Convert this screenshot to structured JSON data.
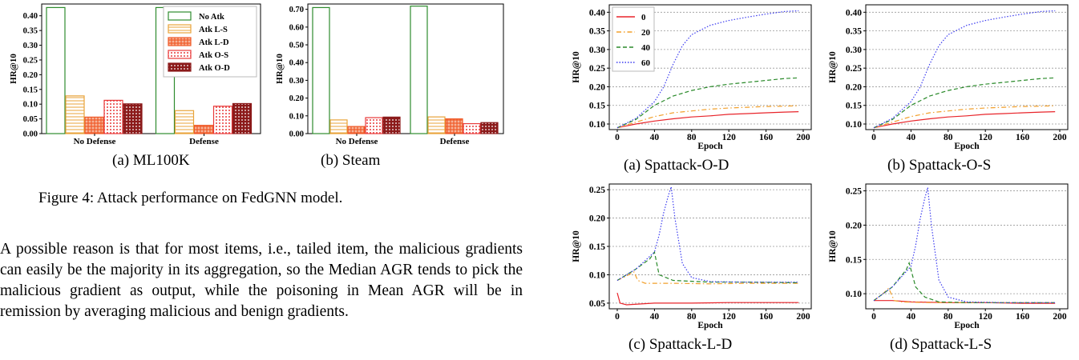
{
  "figure4": {
    "caption": "Figure 4: Attack performance on FedGNN model.",
    "legend": [
      "No Atk",
      "Atk L-S",
      "Atk L-D",
      "Atk O-S",
      "Atk O-D"
    ],
    "legend_colors": [
      "#2e8b2e",
      "#e8a33a",
      "#f05a28",
      "#e83a3a",
      "#8b1a1a"
    ]
  },
  "paragraph": "A possible reason is that for most items, i.e., tailed item, the malicious gradients can easily be the majority in its aggregation, so the Median AGR tends to pick the malicious gradient as output, while the poisoning in Mean AGR will be in remission by averaging malicious and benign gradients.",
  "chart_data": [
    {
      "type": "bar",
      "caption": "(a) ML100K",
      "ylabel": "HR@10",
      "categories": [
        "No Defense",
        "Defense"
      ],
      "ylim": [
        0,
        0.44
      ],
      "yticks": [
        "0.00",
        "0.05",
        "0.10",
        "0.15",
        "0.20",
        "0.25",
        "0.30",
        "0.35",
        "0.40"
      ],
      "series": [
        {
          "name": "No Atk",
          "values": [
            0.428,
            0.428
          ]
        },
        {
          "name": "Atk L-S",
          "values": [
            0.128,
            0.078
          ]
        },
        {
          "name": "Atk L-D",
          "values": [
            0.056,
            0.028
          ]
        },
        {
          "name": "Atk O-S",
          "values": [
            0.113,
            0.093
          ]
        },
        {
          "name": "Atk O-D",
          "values": [
            0.101,
            0.102
          ]
        }
      ]
    },
    {
      "type": "bar",
      "caption": "(b) Steam",
      "ylabel": "HR@10",
      "categories": [
        "No Defense",
        "Defense"
      ],
      "ylim": [
        0,
        0.73
      ],
      "yticks": [
        "0.00",
        "0.10",
        "0.20",
        "0.30",
        "0.40",
        "0.50",
        "0.60",
        "0.70"
      ],
      "series": [
        {
          "name": "No Atk",
          "values": [
            0.71,
            0.718
          ]
        },
        {
          "name": "Atk L-S",
          "values": [
            0.077,
            0.094
          ]
        },
        {
          "name": "Atk L-D",
          "values": [
            0.04,
            0.083
          ]
        },
        {
          "name": "Atk O-S",
          "values": [
            0.09,
            0.056
          ]
        },
        {
          "name": "Atk O-D",
          "values": [
            0.093,
            0.062
          ]
        }
      ]
    },
    {
      "type": "line",
      "caption": "(a) Spattack-O-D",
      "xlabel": "Epoch",
      "ylabel": "HR@10",
      "xlim": [
        0,
        200
      ],
      "ylim": [
        0.085,
        0.42
      ],
      "xticks": [
        "0",
        "40",
        "80",
        "120",
        "160",
        "200"
      ],
      "yticks": [
        "0.10",
        "0.15",
        "0.20",
        "0.25",
        "0.30",
        "0.35",
        "0.40"
      ],
      "legend": [
        "0",
        "20",
        "40",
        "60"
      ],
      "series": [
        {
          "name": "0",
          "x": [
            0,
            20,
            40,
            60,
            80,
            100,
            120,
            140,
            160,
            180,
            195
          ],
          "y": [
            0.09,
            0.1,
            0.108,
            0.114,
            0.119,
            0.122,
            0.126,
            0.128,
            0.13,
            0.132,
            0.133
          ]
        },
        {
          "name": "20",
          "x": [
            0,
            20,
            40,
            60,
            80,
            100,
            120,
            140,
            160,
            180,
            195
          ],
          "y": [
            0.09,
            0.105,
            0.12,
            0.13,
            0.135,
            0.14,
            0.143,
            0.145,
            0.147,
            0.148,
            0.149
          ]
        },
        {
          "name": "40",
          "x": [
            0,
            20,
            40,
            60,
            80,
            100,
            120,
            140,
            160,
            180,
            195
          ],
          "y": [
            0.09,
            0.112,
            0.15,
            0.175,
            0.19,
            0.2,
            0.207,
            0.212,
            0.217,
            0.222,
            0.224
          ]
        },
        {
          "name": "60",
          "x": [
            0,
            20,
            40,
            50,
            60,
            70,
            80,
            100,
            120,
            140,
            160,
            180,
            195
          ],
          "y": [
            0.09,
            0.115,
            0.16,
            0.2,
            0.26,
            0.31,
            0.34,
            0.365,
            0.378,
            0.387,
            0.395,
            0.402,
            0.404
          ]
        }
      ]
    },
    {
      "type": "line",
      "caption": "(b) Spattack-O-S",
      "xlabel": "Epoch",
      "ylabel": "HR@10",
      "xlim": [
        0,
        200
      ],
      "ylim": [
        0.085,
        0.42
      ],
      "xticks": [
        "0",
        "40",
        "80",
        "120",
        "160",
        "200"
      ],
      "yticks": [
        "0.10",
        "0.15",
        "0.20",
        "0.25",
        "0.30",
        "0.35",
        "0.40"
      ],
      "series": [
        {
          "name": "0",
          "x": [
            0,
            20,
            40,
            60,
            80,
            100,
            120,
            140,
            160,
            180,
            195
          ],
          "y": [
            0.09,
            0.1,
            0.108,
            0.114,
            0.119,
            0.122,
            0.126,
            0.128,
            0.13,
            0.132,
            0.133
          ]
        },
        {
          "name": "20",
          "x": [
            0,
            20,
            40,
            60,
            80,
            100,
            120,
            140,
            160,
            180,
            195
          ],
          "y": [
            0.09,
            0.105,
            0.12,
            0.13,
            0.135,
            0.14,
            0.143,
            0.145,
            0.147,
            0.148,
            0.149
          ]
        },
        {
          "name": "40",
          "x": [
            0,
            20,
            40,
            60,
            80,
            100,
            120,
            140,
            160,
            180,
            195
          ],
          "y": [
            0.09,
            0.112,
            0.15,
            0.175,
            0.19,
            0.2,
            0.207,
            0.212,
            0.217,
            0.222,
            0.224
          ]
        },
        {
          "name": "60",
          "x": [
            0,
            20,
            40,
            50,
            60,
            70,
            80,
            100,
            120,
            140,
            160,
            180,
            195
          ],
          "y": [
            0.09,
            0.115,
            0.16,
            0.2,
            0.26,
            0.31,
            0.34,
            0.365,
            0.378,
            0.387,
            0.395,
            0.402,
            0.404
          ]
        }
      ]
    },
    {
      "type": "line",
      "caption": "(c) Spattack-L-D",
      "xlabel": "Epoch",
      "ylabel": "HR@10",
      "xlim": [
        0,
        200
      ],
      "ylim": [
        0.04,
        0.26
      ],
      "xticks": [
        "0",
        "40",
        "80",
        "120",
        "160",
        "200"
      ],
      "yticks": [
        "0.05",
        "0.10",
        "0.15",
        "0.20",
        "0.25"
      ],
      "series": [
        {
          "name": "0",
          "x": [
            0,
            3,
            10,
            40,
            80,
            120,
            160,
            195
          ],
          "y": [
            0.068,
            0.05,
            0.047,
            0.05,
            0.05,
            0.051,
            0.051,
            0.051
          ]
        },
        {
          "name": "20",
          "x": [
            0,
            10,
            18,
            22,
            30,
            60,
            100,
            140,
            195
          ],
          "y": [
            0.09,
            0.098,
            0.105,
            0.09,
            0.085,
            0.085,
            0.084,
            0.085,
            0.085
          ]
        },
        {
          "name": "40",
          "x": [
            0,
            20,
            35,
            40,
            45,
            60,
            100,
            140,
            195
          ],
          "y": [
            0.09,
            0.11,
            0.128,
            0.14,
            0.1,
            0.09,
            0.087,
            0.087,
            0.086
          ]
        },
        {
          "name": "60",
          "x": [
            0,
            20,
            40,
            45,
            50,
            55,
            58,
            62,
            70,
            80,
            100,
            140,
            195
          ],
          "y": [
            0.09,
            0.11,
            0.14,
            0.17,
            0.21,
            0.24,
            0.255,
            0.2,
            0.12,
            0.095,
            0.088,
            0.087,
            0.087
          ]
        }
      ]
    },
    {
      "type": "line",
      "caption": "(d) Spattack-L-S",
      "xlabel": "Epoch",
      "ylabel": "HR@10",
      "xlim": [
        0,
        200
      ],
      "ylim": [
        0.078,
        0.26
      ],
      "xticks": [
        "0",
        "40",
        "80",
        "120",
        "160",
        "200"
      ],
      "yticks": [
        "0.10",
        "0.15",
        "0.20",
        "0.25"
      ],
      "series": [
        {
          "name": "0",
          "x": [
            0,
            10,
            20,
            40,
            80,
            120,
            160,
            195
          ],
          "y": [
            0.09,
            0.09,
            0.09,
            0.088,
            0.087,
            0.087,
            0.086,
            0.086
          ]
        },
        {
          "name": "20",
          "x": [
            0,
            10,
            16,
            22,
            30,
            60,
            100,
            140,
            195
          ],
          "y": [
            0.09,
            0.1,
            0.108,
            0.09,
            0.088,
            0.087,
            0.087,
            0.087,
            0.087
          ]
        },
        {
          "name": "40",
          "x": [
            0,
            20,
            35,
            38,
            45,
            55,
            70,
            100,
            140,
            195
          ],
          "y": [
            0.09,
            0.11,
            0.135,
            0.145,
            0.11,
            0.095,
            0.088,
            0.087,
            0.087,
            0.087
          ]
        },
        {
          "name": "60",
          "x": [
            0,
            20,
            40,
            45,
            50,
            55,
            58,
            62,
            70,
            80,
            100,
            140,
            195
          ],
          "y": [
            0.09,
            0.11,
            0.14,
            0.17,
            0.21,
            0.24,
            0.255,
            0.2,
            0.12,
            0.095,
            0.088,
            0.087,
            0.087
          ]
        }
      ]
    }
  ]
}
